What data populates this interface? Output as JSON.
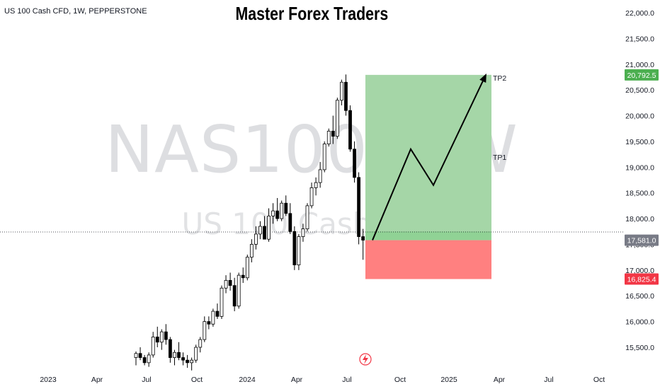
{
  "header": {
    "symbol_info": "US 100 Cash CFD, 1W, PEPPERSTONE",
    "title": "Master Forex Traders"
  },
  "watermark": {
    "line1": "NAS100, 1W",
    "line2": "US 100 Cash CFD"
  },
  "chart_data": {
    "type": "candlestick",
    "symbol": "US 100 Cash CFD",
    "timeframe": "1W",
    "broker": "PEPPERSTONE",
    "price_axis": {
      "ticks": [
        "15,500.0",
        "16,000.0",
        "16,500.0",
        "17,000.0",
        "17,500.0",
        "18,000.0",
        "18,500.0",
        "19,000.0",
        "19,500.0",
        "20,000.0",
        "20,500.0",
        "21,000.0",
        "21,500.0",
        "22,000.0"
      ],
      "range": [
        15200,
        22100
      ]
    },
    "time_axis": {
      "labels": [
        "2023",
        "Apr",
        "Jul",
        "Oct",
        "2024",
        "Apr",
        "Jul",
        "Oct",
        "2025",
        "Apr",
        "Jul",
        "Oct"
      ]
    },
    "colors": {
      "up": "#ffffff",
      "down": "#000000",
      "outline": "#000000",
      "profit_zone": "#a5d6a7",
      "loss_zone": "#ff8080",
      "tp_badge": "#4caf50",
      "sl_badge": "#f23645",
      "current_badge": "#787b86"
    },
    "candles_ohlc": [
      [
        15300,
        15420,
        15150,
        15380
      ],
      [
        15380,
        15500,
        15250,
        15300
      ],
      [
        15300,
        15350,
        15150,
        15200
      ],
      [
        15200,
        15400,
        15120,
        15350
      ],
      [
        15350,
        15800,
        15300,
        15700
      ],
      [
        15700,
        15900,
        15500,
        15600
      ],
      [
        15600,
        15850,
        15450,
        15800
      ],
      [
        15800,
        15950,
        15550,
        15650
      ],
      [
        15650,
        15700,
        15200,
        15300
      ],
      [
        15300,
        15450,
        15150,
        15400
      ],
      [
        15400,
        15600,
        15250,
        15300
      ],
      [
        15300,
        15400,
        15150,
        15250
      ],
      [
        15250,
        15350,
        15100,
        15200
      ],
      [
        15200,
        15300,
        15050,
        15250
      ],
      [
        15250,
        15550,
        15200,
        15500
      ],
      [
        15500,
        15700,
        15400,
        15650
      ],
      [
        15650,
        16100,
        15600,
        16000
      ],
      [
        16000,
        16100,
        15850,
        15950
      ],
      [
        15950,
        16250,
        15900,
        16200
      ],
      [
        16200,
        16350,
        16050,
        16100
      ],
      [
        16100,
        16700,
        16050,
        16650
      ],
      [
        16650,
        16900,
        16550,
        16800
      ],
      [
        16800,
        16950,
        16600,
        16700
      ],
      [
        16700,
        16850,
        16200,
        16300
      ],
      [
        16300,
        16950,
        16250,
        16900
      ],
      [
        16900,
        17050,
        16750,
        16850
      ],
      [
        16850,
        17300,
        16800,
        17250
      ],
      [
        17250,
        17600,
        17150,
        17500
      ],
      [
        17500,
        17850,
        17400,
        17700
      ],
      [
        17700,
        17950,
        17600,
        17850
      ],
      [
        17850,
        18050,
        17700,
        17600
      ],
      [
        17600,
        18200,
        17550,
        18050
      ],
      [
        18050,
        18300,
        17900,
        18150
      ],
      [
        18150,
        18400,
        17950,
        18000
      ],
      [
        18000,
        18350,
        17950,
        18300
      ],
      [
        18300,
        18450,
        18050,
        18100
      ],
      [
        18100,
        18300,
        17700,
        17750
      ],
      [
        17750,
        17850,
        17000,
        17100
      ],
      [
        17100,
        17700,
        17000,
        17650
      ],
      [
        17650,
        17900,
        17550,
        17800
      ],
      [
        17800,
        18300,
        17750,
        18250
      ],
      [
        18250,
        18700,
        18200,
        18600
      ],
      [
        18600,
        18800,
        18450,
        18700
      ],
      [
        18700,
        19100,
        18600,
        18950
      ],
      [
        18950,
        19500,
        18900,
        19450
      ],
      [
        19450,
        19750,
        19400,
        19700
      ],
      [
        19700,
        20000,
        19450,
        19600
      ],
      [
        19600,
        20350,
        19550,
        20300
      ],
      [
        20300,
        20700,
        20200,
        20650
      ],
      [
        20650,
        20800,
        20000,
        20100
      ],
      [
        20100,
        20200,
        19300,
        19350
      ],
      [
        19350,
        19500,
        18700,
        18800
      ],
      [
        18800,
        18900,
        17500,
        17650
      ],
      [
        17650,
        17800,
        17200,
        17581
      ]
    ],
    "trade_setup": {
      "entry": 17581.0,
      "stop_loss": 16825.4,
      "take_profit": 20792.5,
      "labels": [
        "TP1",
        "TP2"
      ],
      "path": [
        17581,
        19350,
        18650,
        20792.5
      ]
    },
    "badges": [
      {
        "value": 20792.5,
        "text": "20,792.5",
        "kind": "tp"
      },
      {
        "value": 17581.0,
        "text": "17,581.0",
        "kind": "current"
      },
      {
        "value": 16825.4,
        "text": "16,825.4",
        "kind": "sl"
      }
    ]
  }
}
